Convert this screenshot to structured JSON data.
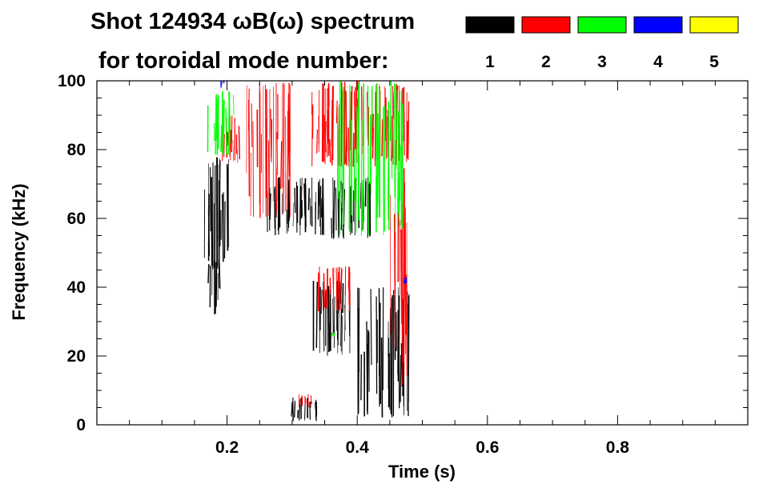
{
  "chart_data": {
    "type": "spectrogram",
    "title_line1": "Shot 124934 ωB(ω) spectrum",
    "title_line2": "for toroidal mode number:",
    "xlabel": "Time (s)",
    "ylabel": "Frequency (kHz)",
    "xlim": [
      0.0,
      1.0
    ],
    "ylim": [
      0,
      100
    ],
    "x_ticks": [
      0.2,
      0.4,
      0.6,
      0.8
    ],
    "x_tick_labels": [
      "0.2",
      "0.4",
      "0.6",
      "0.8"
    ],
    "y_ticks": [
      0,
      20,
      40,
      60,
      80,
      100
    ],
    "y_tick_labels": [
      "0",
      "20",
      "40",
      "60",
      "80",
      "100"
    ],
    "legend": {
      "placement": "top-right",
      "entries": [
        {
          "label": "1",
          "color": "#000000"
        },
        {
          "label": "2",
          "color": "#ff0000"
        },
        {
          "label": "3",
          "color": "#00ff00"
        },
        {
          "label": "4",
          "color": "#0000ff"
        },
        {
          "label": "5",
          "color": "#ffff00"
        }
      ]
    },
    "series": [
      {
        "mode": "1",
        "color": "#000000",
        "regions": [
          {
            "t": [
              0.16,
              0.21
            ],
            "f": [
              45,
              78
            ]
          },
          {
            "t": [
              0.17,
              0.19
            ],
            "f": [
              32,
              48
            ]
          },
          {
            "t": [
              0.36,
              0.42
            ],
            "f": [
              54,
              72
            ]
          },
          {
            "t": [
              0.33,
              0.39
            ],
            "f": [
              20,
              42
            ]
          },
          {
            "t": [
              0.4,
              0.48
            ],
            "f": [
              2,
              40
            ]
          },
          {
            "t": [
              0.3,
              0.34
            ],
            "f": [
              1,
              8
            ]
          },
          {
            "t": [
              0.26,
              0.35
            ],
            "f": [
              55,
              72
            ]
          }
        ]
      },
      {
        "mode": "2",
        "color": "#ff0000",
        "regions": [
          {
            "t": [
              0.23,
              0.3
            ],
            "f": [
              60,
              100
            ]
          },
          {
            "t": [
              0.33,
              0.48
            ],
            "f": [
              75,
              100
            ]
          },
          {
            "t": [
              0.34,
              0.39
            ],
            "f": [
              33,
              46
            ]
          },
          {
            "t": [
              0.31,
              0.33
            ],
            "f": [
              5,
              9
            ]
          },
          {
            "t": [
              0.19,
              0.22
            ],
            "f": [
              76,
              90
            ]
          },
          {
            "t": [
              0.45,
              0.48
            ],
            "f": [
              10,
              75
            ]
          }
        ]
      },
      {
        "mode": "3",
        "color": "#00ff00",
        "regions": [
          {
            "t": [
              0.17,
              0.21
            ],
            "f": [
              78,
              97
            ]
          },
          {
            "t": [
              0.36,
              0.37
            ],
            "f": [
              25,
              27
            ]
          },
          {
            "t": [
              0.37,
              0.47
            ],
            "f": [
              55,
              100
            ]
          }
        ]
      },
      {
        "mode": "4",
        "color": "#0000ff",
        "regions": [
          {
            "t": [
              0.19,
              0.195
            ],
            "f": [
              98,
              100
            ]
          },
          {
            "t": [
              0.47,
              0.475
            ],
            "f": [
              41,
              43
            ]
          }
        ]
      },
      {
        "mode": "5",
        "color": "#ffff00",
        "regions": []
      }
    ],
    "grid": false
  }
}
